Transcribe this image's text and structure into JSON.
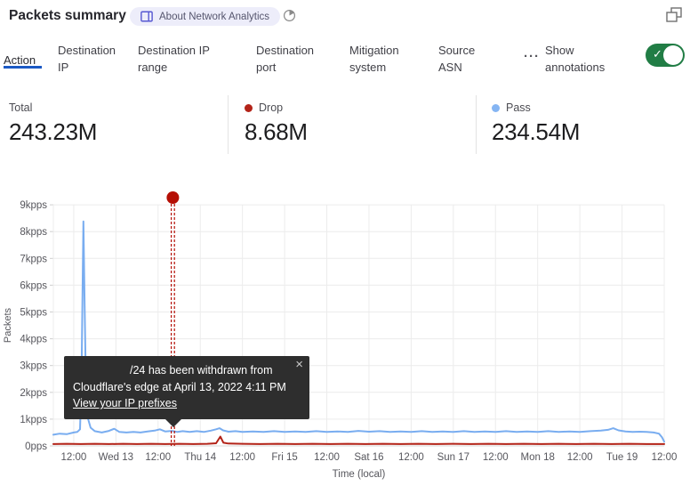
{
  "header": {
    "title": "Packets summary",
    "badge_label": "About Network Analytics"
  },
  "tabs": {
    "items": [
      {
        "label": "Action",
        "active": true
      },
      {
        "label": "Destination IP",
        "active": false
      },
      {
        "label": "Destination IP range",
        "active": false
      },
      {
        "label": "Destination port",
        "active": false
      },
      {
        "label": "Mitigation system",
        "active": false
      },
      {
        "label": "Source ASN",
        "active": false
      }
    ],
    "more_label": "···",
    "annotations_label": "Show annotations",
    "toggle_on": true,
    "toggle_check": "✓"
  },
  "stats": {
    "total": {
      "label": "Total",
      "value": "243.23M"
    },
    "drop": {
      "label": "Drop",
      "value": "8.68M",
      "color": "#b32318"
    },
    "pass": {
      "label": "Pass",
      "value": "234.54M",
      "color": "#85b5f3"
    }
  },
  "colors": {
    "accent_blue": "#1b59c4",
    "toggle_green": "#217d45",
    "pass_line": "#79adf0",
    "drop_line": "#b32318",
    "annotation_red": "#b50f05",
    "grid": "#ececec"
  },
  "chart_data": {
    "type": "line",
    "title": "Packets summary",
    "xlabel": "Time (local)",
    "ylabel": "Packets",
    "units": "kpps",
    "ylim": [
      0,
      9
    ],
    "yticks": [
      "0pps",
      "1kpps",
      "2kpps",
      "3kpps",
      "4kpps",
      "5kpps",
      "6kpps",
      "7kpps",
      "8kpps",
      "9kpps"
    ],
    "xticks": [
      "12:00",
      "Wed 13",
      "12:00",
      "Thu 14",
      "12:00",
      "Fri 15",
      "12:00",
      "Sat 16",
      "12:00",
      "Sun 17",
      "12:00",
      "Mon 18",
      "12:00",
      "Tue 19",
      "12:00"
    ],
    "xtick_hours": [
      12,
      24,
      36,
      48,
      60,
      72,
      84,
      96,
      108,
      120,
      132,
      144,
      156,
      168,
      180
    ],
    "x_domain_hours": [
      6.2,
      180
    ],
    "x_domain_note": "hours since Apr 12 2022 00:00 local",
    "grid": true,
    "legend_position": "stats-row-above",
    "series": [
      {
        "name": "Pass",
        "color": "#79adf0",
        "points": [
          [
            6.2,
            0.42
          ],
          [
            8,
            0.46
          ],
          [
            10,
            0.44
          ],
          [
            12,
            0.5
          ],
          [
            13,
            0.52
          ],
          [
            13.8,
            0.62
          ],
          [
            14.2,
            2.4
          ],
          [
            14.75,
            8.38
          ],
          [
            15.1,
            5.2
          ],
          [
            15.45,
            2.3
          ],
          [
            16,
            1.05
          ],
          [
            16.8,
            0.68
          ],
          [
            18,
            0.55
          ],
          [
            20,
            0.5
          ],
          [
            22,
            0.56
          ],
          [
            23.5,
            0.64
          ],
          [
            25,
            0.52
          ],
          [
            27,
            0.5
          ],
          [
            29,
            0.52
          ],
          [
            31,
            0.5
          ],
          [
            33,
            0.54
          ],
          [
            35,
            0.57
          ],
          [
            36.5,
            0.62
          ],
          [
            38,
            0.54
          ],
          [
            40,
            0.56
          ],
          [
            41.5,
            0.52
          ],
          [
            43,
            0.55
          ],
          [
            45,
            0.52
          ],
          [
            47,
            0.55
          ],
          [
            49,
            0.52
          ],
          [
            51,
            0.57
          ],
          [
            52.5,
            0.62
          ],
          [
            53.5,
            0.66
          ],
          [
            54.5,
            0.58
          ],
          [
            56,
            0.53
          ],
          [
            58,
            0.55
          ],
          [
            60,
            0.52
          ],
          [
            63,
            0.54
          ],
          [
            66,
            0.52
          ],
          [
            69,
            0.55
          ],
          [
            72,
            0.52
          ],
          [
            75,
            0.54
          ],
          [
            78,
            0.52
          ],
          [
            81,
            0.55
          ],
          [
            84,
            0.52
          ],
          [
            87,
            0.54
          ],
          [
            90,
            0.52
          ],
          [
            93,
            0.56
          ],
          [
            96,
            0.53
          ],
          [
            99,
            0.55
          ],
          [
            102,
            0.52
          ],
          [
            105,
            0.54
          ],
          [
            108,
            0.52
          ],
          [
            111,
            0.55
          ],
          [
            114,
            0.52
          ],
          [
            117,
            0.54
          ],
          [
            120,
            0.52
          ],
          [
            123,
            0.55
          ],
          [
            126,
            0.52
          ],
          [
            129,
            0.54
          ],
          [
            132,
            0.52
          ],
          [
            135,
            0.55
          ],
          [
            138,
            0.52
          ],
          [
            141,
            0.54
          ],
          [
            144,
            0.52
          ],
          [
            147,
            0.55
          ],
          [
            150,
            0.52
          ],
          [
            153,
            0.54
          ],
          [
            156,
            0.52
          ],
          [
            159,
            0.55
          ],
          [
            162,
            0.57
          ],
          [
            164,
            0.6
          ],
          [
            165.5,
            0.66
          ],
          [
            167,
            0.58
          ],
          [
            169,
            0.54
          ],
          [
            171,
            0.52
          ],
          [
            173,
            0.53
          ],
          [
            175,
            0.52
          ],
          [
            177,
            0.5
          ],
          [
            178.5,
            0.46
          ],
          [
            179.4,
            0.32
          ],
          [
            180,
            0.16
          ]
        ]
      },
      {
        "name": "Drop",
        "color": "#b32318",
        "points": [
          [
            6.2,
            0.07
          ],
          [
            10,
            0.08
          ],
          [
            14,
            0.07
          ],
          [
            18,
            0.08
          ],
          [
            22,
            0.07
          ],
          [
            26,
            0.08
          ],
          [
            30,
            0.07
          ],
          [
            34,
            0.08
          ],
          [
            38,
            0.07
          ],
          [
            42,
            0.08
          ],
          [
            46,
            0.07
          ],
          [
            50,
            0.08
          ],
          [
            52.5,
            0.1
          ],
          [
            53.7,
            0.35
          ],
          [
            54.6,
            0.12
          ],
          [
            56,
            0.09
          ],
          [
            60,
            0.08
          ],
          [
            65,
            0.07
          ],
          [
            70,
            0.08
          ],
          [
            75,
            0.07
          ],
          [
            80,
            0.08
          ],
          [
            85,
            0.07
          ],
          [
            90,
            0.08
          ],
          [
            95,
            0.07
          ],
          [
            100,
            0.08
          ],
          [
            105,
            0.07
          ],
          [
            110,
            0.08
          ],
          [
            115,
            0.07
          ],
          [
            120,
            0.08
          ],
          [
            125,
            0.07
          ],
          [
            130,
            0.08
          ],
          [
            135,
            0.07
          ],
          [
            140,
            0.08
          ],
          [
            145,
            0.07
          ],
          [
            150,
            0.08
          ],
          [
            155,
            0.07
          ],
          [
            160,
            0.08
          ],
          [
            165,
            0.07
          ],
          [
            170,
            0.08
          ],
          [
            175,
            0.07
          ],
          [
            180,
            0.07
          ]
        ]
      }
    ],
    "annotation": {
      "hour": 40.2,
      "color": "#b50f05",
      "tooltip": {
        "line1": "/24 has been withdrawn from",
        "line2": "Cloudflare's edge at April 13, 2022 4:11 PM",
        "link": "View your IP prefixes",
        "close": "×"
      }
    }
  }
}
